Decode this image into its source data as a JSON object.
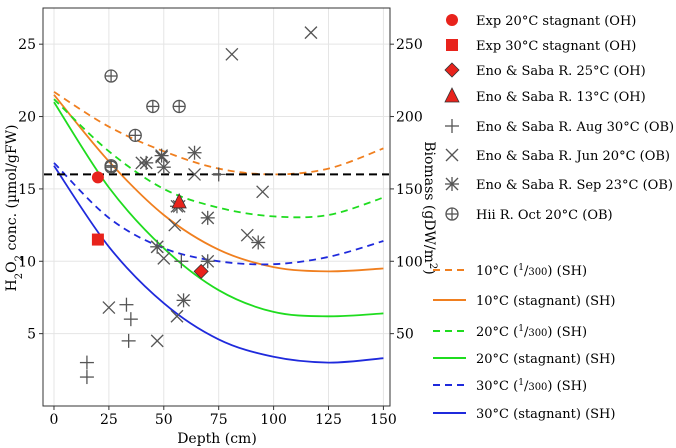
{
  "chart_data": {
    "type": "scatter",
    "xlabel": "Depth (cm)",
    "ylabel_left": "H2O2 conc. (µmol/gFW)",
    "ylabel_left_parts": {
      "h": "H",
      "sub1": "2",
      "o": "O",
      "sub2": "2",
      "rest": " conc. (µmol/gFW)"
    },
    "ylabel_right": "Biomass (gDW/m2)",
    "ylabel_right_parts": {
      "main": "Biomass (gDW/m",
      "sup": "2",
      "close": ")"
    },
    "xlim": [
      -5,
      153
    ],
    "ylim_left": [
      0,
      27.5
    ],
    "ylim_right": [
      0,
      275
    ],
    "x_ticks": [
      0,
      25,
      50,
      75,
      100,
      125,
      150
    ],
    "x_tick_labels": [
      "0",
      "25",
      "50",
      "75",
      "100",
      "125",
      "150"
    ],
    "y_left_ticks": [
      5,
      10,
      15,
      20,
      25
    ],
    "y_left_tick_labels": [
      "5",
      "10",
      "15",
      "20",
      "25"
    ],
    "y_right_ticks": [
      50,
      100,
      150,
      200,
      250
    ],
    "y_right_tick_labels": [
      "50",
      "100",
      "150",
      "200",
      "250"
    ],
    "grid": true,
    "legend_position": "outside-right",
    "reference_line": {
      "y": 16,
      "style": "dashed",
      "color": "#000000"
    },
    "scatter_series": [
      {
        "name": "Exp 20°C stagnant (OH)",
        "marker": "circle",
        "color": "#e8231c",
        "axis": "left",
        "points": [
          [
            20,
            15.8
          ]
        ]
      },
      {
        "name": "Exp 30°C stagnant (OH)",
        "marker": "square",
        "color": "#e8231c",
        "axis": "left",
        "points": [
          [
            20,
            11.5
          ]
        ]
      },
      {
        "name": "Eno & Saba R. 25°C (OH)",
        "marker": "diamond",
        "color": "#e8231c",
        "axis": "left",
        "points": [
          [
            67,
            9.3
          ]
        ]
      },
      {
        "name": "Eno & Saba R. 13°C (OH)",
        "marker": "triangle",
        "color": "#e8231c",
        "axis": "left",
        "points": [
          [
            57,
            14.1
          ]
        ]
      },
      {
        "name": "Eno & Saba R. Aug 30°C (OB)",
        "marker": "plus",
        "color": "#555555",
        "axis": "right",
        "points": [
          [
            15,
            20
          ],
          [
            15,
            30
          ],
          [
            33,
            70
          ],
          [
            35,
            60
          ],
          [
            34,
            45
          ],
          [
            58,
            100
          ],
          [
            75,
            160
          ]
        ]
      },
      {
        "name": "Eno & Saba R. Jun 20°C (OB)",
        "marker": "x",
        "color": "#555555",
        "axis": "right",
        "points": [
          [
            25,
            68
          ],
          [
            47,
            45
          ],
          [
            47,
            110
          ],
          [
            50,
            102
          ],
          [
            55,
            125
          ],
          [
            56,
            62
          ],
          [
            57,
            138
          ],
          [
            64,
            160
          ],
          [
            81,
            243
          ],
          [
            88,
            118
          ],
          [
            95,
            148
          ],
          [
            117,
            258
          ],
          [
            40,
            168
          ],
          [
            49,
            172
          ]
        ]
      },
      {
        "name": "Eno & Saba R. Sep 23°C (OB)",
        "marker": "asterisk",
        "color": "#555555",
        "axis": "right",
        "points": [
          [
            42,
            168
          ],
          [
            49,
            173
          ],
          [
            50,
            165
          ],
          [
            56,
            138
          ],
          [
            59,
            73
          ],
          [
            64,
            175
          ],
          [
            70,
            100
          ],
          [
            70,
            130
          ],
          [
            93,
            113
          ],
          [
            47,
            110
          ]
        ]
      },
      {
        "name": "Hii R. Oct 20°C (OB)",
        "marker": "circleplus",
        "color": "#555555",
        "axis": "right",
        "points": [
          [
            26,
            228
          ],
          [
            26,
            165
          ],
          [
            37,
            187
          ],
          [
            45,
            207
          ],
          [
            57,
            207
          ],
          [
            26,
            166
          ]
        ]
      }
    ],
    "model_curves": [
      {
        "name": "10°C (1/300) (SH)",
        "parts": {
          "pre": "10°C (",
          "num": "1",
          "den": "300",
          "post": ") (SH)"
        },
        "color": "#f07f1f",
        "dash": true,
        "x": [
          0,
          25,
          50,
          75,
          100,
          125,
          150
        ],
        "y": [
          21.7,
          19.3,
          17.6,
          16.4,
          16.0,
          16.4,
          17.8
        ]
      },
      {
        "name": "10°C (stagnant) (SH)",
        "color": "#f07f1f",
        "dash": false,
        "x": [
          0,
          25,
          50,
          75,
          100,
          125,
          150
        ],
        "y": [
          21.5,
          16.9,
          13.2,
          10.8,
          9.6,
          9.3,
          9.5
        ]
      },
      {
        "name": "20°C (1/300) (SH)",
        "parts": {
          "pre": "20°C (",
          "num": "1",
          "den": "300",
          "post": ") (SH)"
        },
        "color": "#1fdc1f",
        "dash": true,
        "x": [
          0,
          25,
          50,
          75,
          100,
          125,
          150
        ],
        "y": [
          21.2,
          17.6,
          15.0,
          13.7,
          13.1,
          13.2,
          14.4
        ]
      },
      {
        "name": "20°C (stagnant) (SH)",
        "color": "#1fdc1f",
        "dash": false,
        "x": [
          0,
          25,
          50,
          75,
          100,
          125,
          150
        ],
        "y": [
          21.0,
          15.1,
          10.9,
          8.0,
          6.5,
          6.2,
          6.4
        ]
      },
      {
        "name": "30°C (1/300) (SH)",
        "parts": {
          "pre": "30°C (",
          "num": "1",
          "den": "300",
          "post": ") (SH)"
        },
        "color": "#1f2adc",
        "dash": true,
        "x": [
          0,
          25,
          50,
          75,
          100,
          125,
          150
        ],
        "y": [
          16.8,
          13.0,
          10.9,
          10.0,
          9.8,
          10.3,
          11.4
        ]
      },
      {
        "name": "30°C (stagnant) (SH)",
        "color": "#1f2adc",
        "dash": false,
        "x": [
          0,
          25,
          50,
          75,
          100,
          125,
          150
        ],
        "y": [
          16.6,
          11.0,
          7.1,
          4.6,
          3.4,
          3.0,
          3.3
        ]
      }
    ]
  }
}
